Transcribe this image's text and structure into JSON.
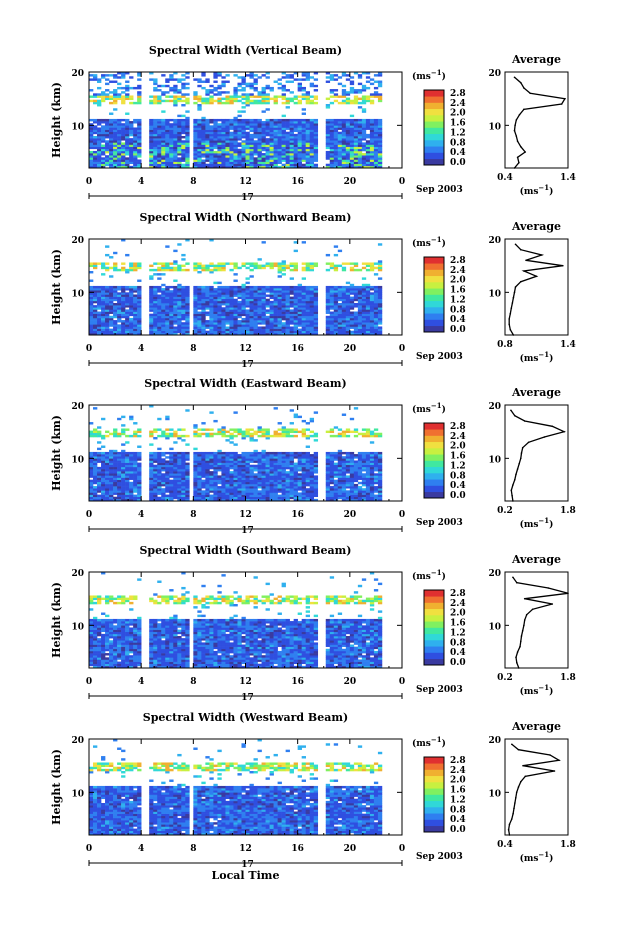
{
  "colors": {
    "palette": [
      "#3a3aa0",
      "#2f4fe0",
      "#2f7ff0",
      "#2fb0ee",
      "#30d8d8",
      "#40e8a0",
      "#80f060",
      "#c8f040",
      "#f0e040",
      "#f0b030",
      "#f07030",
      "#e03030"
    ],
    "background": "#ffffff",
    "axis": "#000000"
  },
  "figure": {
    "date_label": "Sep 2003",
    "day_label": "17",
    "local_time_label": "Local Time",
    "height_label": "Height (km)",
    "unit_label": "(ms",
    "unit_exp": "−1",
    "unit_close": ")",
    "average_title": "Average"
  },
  "chart_data": [
    {
      "type": "heatmap",
      "title": "Spectral Width (Vertical Beam)",
      "xlabel": "",
      "ylabel": "Height (km)",
      "x_ticks": [
        "0",
        "4",
        "8",
        "12",
        "16",
        "20",
        "0"
      ],
      "xlim": [
        0,
        24
      ],
      "ylim": [
        2,
        20
      ],
      "y_ticks": [
        "20",
        "10"
      ],
      "colorbar": {
        "unit": "ms-1",
        "ticks": [
          "2.8",
          "2.4",
          "2.0",
          "1.6",
          "1.2",
          "0.8",
          "0.4",
          "0.0"
        ]
      },
      "data_gaps_hours": [
        4.3,
        7.9,
        17.9
      ],
      "average_profile": {
        "title": "Average",
        "xlabel": "(ms-1)",
        "xlim": [
          0.4,
          1.4
        ],
        "x_ticks": [
          "0.4",
          "1.4"
        ],
        "y_ticks": [
          "20",
          "10"
        ],
        "height_km": [
          2,
          3,
          4,
          5,
          6,
          7,
          8,
          9,
          10,
          11,
          12,
          13,
          14,
          15,
          16,
          17,
          18,
          19
        ],
        "width": [
          0.55,
          0.62,
          0.6,
          0.72,
          0.65,
          0.6,
          0.58,
          0.55,
          0.56,
          0.58,
          0.63,
          0.7,
          1.3,
          1.35,
          0.8,
          0.7,
          0.65,
          0.55
        ]
      }
    },
    {
      "type": "heatmap",
      "title": "Spectral Width (Northward Beam)",
      "xlabel": "",
      "ylabel": "Height (km)",
      "x_ticks": [
        "0",
        "4",
        "8",
        "12",
        "16",
        "20",
        "0"
      ],
      "xlim": [
        0,
        24
      ],
      "ylim": [
        2,
        20
      ],
      "y_ticks": [
        "20",
        "10"
      ],
      "colorbar": {
        "unit": "ms-1",
        "ticks": [
          "2.8",
          "2.4",
          "2.0",
          "1.6",
          "1.2",
          "0.8",
          "0.4",
          "0.0"
        ]
      },
      "data_gaps_hours": [
        4.3,
        7.9,
        17.9
      ],
      "average_profile": {
        "title": "Average",
        "xlabel": "(ms-1)",
        "xlim": [
          0.8,
          1.4
        ],
        "x_ticks": [
          "0.8",
          "1.4"
        ],
        "y_ticks": [
          "20",
          "10"
        ],
        "height_km": [
          2,
          3,
          4,
          5,
          6,
          7,
          8,
          9,
          10,
          11,
          12,
          13,
          14,
          15,
          16,
          17,
          18,
          19
        ],
        "width": [
          0.88,
          0.85,
          0.84,
          0.84,
          0.85,
          0.86,
          0.87,
          0.88,
          0.89,
          0.9,
          0.95,
          1.1,
          0.98,
          1.35,
          1.0,
          1.15,
          0.95,
          0.9
        ]
      }
    },
    {
      "type": "heatmap",
      "title": "Spectral Width (Eastward Beam)",
      "xlabel": "",
      "ylabel": "Height (km)",
      "x_ticks": [
        "0",
        "4",
        "8",
        "12",
        "16",
        "20",
        "0"
      ],
      "xlim": [
        0,
        24
      ],
      "ylim": [
        2,
        20
      ],
      "y_ticks": [
        "20",
        "10"
      ],
      "colorbar": {
        "unit": "ms-1",
        "ticks": [
          "2.8",
          "2.4",
          "2.0",
          "1.6",
          "1.2",
          "0.8",
          "0.4",
          "0.0"
        ]
      },
      "data_gaps_hours": [
        4.3,
        7.9,
        17.9
      ],
      "average_profile": {
        "title": "Average",
        "xlabel": "(ms-1)",
        "xlim": [
          0.2,
          1.8
        ],
        "x_ticks": [
          "0.2",
          "1.8"
        ],
        "y_ticks": [
          "20",
          "10"
        ],
        "height_km": [
          2,
          3,
          4,
          5,
          6,
          7,
          8,
          9,
          10,
          11,
          12,
          13,
          14,
          15,
          16,
          17,
          18,
          19
        ],
        "width": [
          0.4,
          0.38,
          0.36,
          0.4,
          0.45,
          0.48,
          0.52,
          0.56,
          0.6,
          0.62,
          0.65,
          0.8,
          1.2,
          1.7,
          1.4,
          0.7,
          0.45,
          0.35
        ]
      }
    },
    {
      "type": "heatmap",
      "title": "Spectral Width (Southward Beam)",
      "xlabel": "",
      "ylabel": "Height (km)",
      "x_ticks": [
        "0",
        "4",
        "8",
        "12",
        "16",
        "20",
        "0"
      ],
      "xlim": [
        0,
        24
      ],
      "ylim": [
        2,
        20
      ],
      "y_ticks": [
        "20",
        "10"
      ],
      "colorbar": {
        "unit": "ms-1",
        "ticks": [
          "2.8",
          "2.4",
          "2.0",
          "1.6",
          "1.2",
          "0.8",
          "0.4",
          "0.0"
        ]
      },
      "data_gaps_hours": [
        4.3,
        7.9,
        17.9
      ],
      "average_profile": {
        "title": "Average",
        "xlabel": "(ms-1)",
        "xlim": [
          0.2,
          1.8
        ],
        "x_ticks": [
          "0.2",
          "1.8"
        ],
        "y_ticks": [
          "20",
          "10"
        ],
        "height_km": [
          2,
          3,
          4,
          5,
          6,
          7,
          8,
          9,
          10,
          11,
          12,
          13,
          14,
          15,
          16,
          17,
          18,
          19
        ],
        "width": [
          0.55,
          0.5,
          0.48,
          0.52,
          0.58,
          0.6,
          0.62,
          0.65,
          0.68,
          0.7,
          0.75,
          0.9,
          1.4,
          0.7,
          1.8,
          1.3,
          0.5,
          0.4
        ]
      }
    },
    {
      "type": "heatmap",
      "title": "Spectral Width (Westward Beam)",
      "xlabel": "",
      "ylabel": "Height (km)",
      "x_ticks": [
        "0",
        "4",
        "8",
        "12",
        "16",
        "20",
        "0"
      ],
      "xlim": [
        0,
        24
      ],
      "ylim": [
        2,
        20
      ],
      "y_ticks": [
        "20",
        "10"
      ],
      "colorbar": {
        "unit": "ms-1",
        "ticks": [
          "2.8",
          "2.4",
          "2.0",
          "1.6",
          "1.2",
          "0.8",
          "0.4",
          "0.0"
        ]
      },
      "data_gaps_hours": [
        4.3,
        7.9,
        17.9
      ],
      "average_profile": {
        "title": "Average",
        "xlabel": "(ms-1)",
        "xlim": [
          0.4,
          1.8
        ],
        "x_ticks": [
          "0.4",
          "1.8"
        ],
        "y_ticks": [
          "20",
          "10"
        ],
        "height_km": [
          2,
          3,
          4,
          5,
          6,
          7,
          8,
          9,
          10,
          11,
          12,
          13,
          14,
          15,
          16,
          17,
          18,
          19
        ],
        "width": [
          0.5,
          0.48,
          0.5,
          0.55,
          0.58,
          0.6,
          0.62,
          0.64,
          0.66,
          0.7,
          0.75,
          0.85,
          1.5,
          0.8,
          1.6,
          1.4,
          0.7,
          0.55
        ]
      }
    }
  ]
}
